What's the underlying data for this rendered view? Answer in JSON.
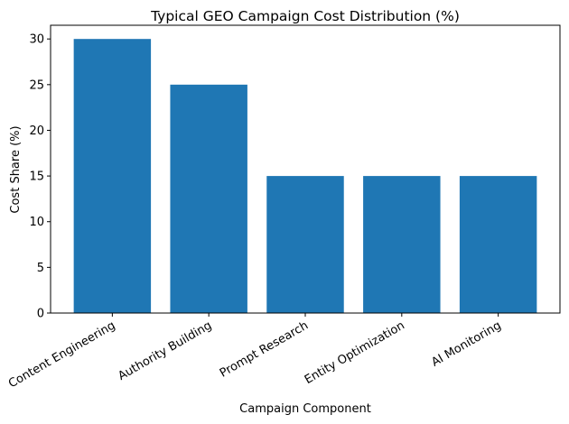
{
  "chart_data": {
    "type": "bar",
    "title": "Typical GEO Campaign Cost Distribution (%)",
    "xlabel": "Campaign Component",
    "ylabel": "Cost Share (%)",
    "categories": [
      "Content Engineering",
      "Authority Building",
      "Prompt Research",
      "Entity Optimization",
      "AI Monitoring"
    ],
    "values": [
      30,
      25,
      15,
      15,
      15
    ],
    "ylim": [
      0,
      31.5
    ],
    "yticks": [
      0,
      5,
      10,
      15,
      20,
      25,
      30
    ],
    "grid": false,
    "bar_color": "#1f77b4",
    "xtick_rotation_deg": 30
  }
}
